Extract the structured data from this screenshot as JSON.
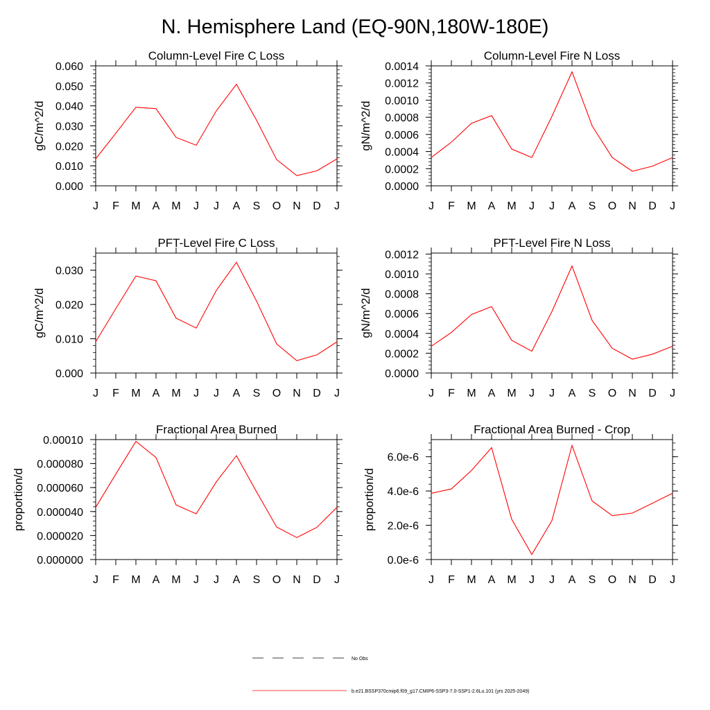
{
  "title": "N. Hemisphere Land (EQ-90N,180W-180E)",
  "chart_data": [
    {
      "type": "line",
      "title": "Column-Level Fire C Loss",
      "ylabel": "gC/m^2/d",
      "categories": [
        "J",
        "F",
        "M",
        "A",
        "M",
        "J",
        "J",
        "A",
        "S",
        "O",
        "N",
        "D",
        "J"
      ],
      "ylim": [
        0,
        0.06
      ],
      "yticks": [
        "0.000",
        "0.010",
        "0.020",
        "0.030",
        "0.040",
        "0.050",
        "0.060"
      ],
      "series": [
        {
          "color": "#ff0000",
          "values": [
            0.0135,
            0.0263,
            0.0393,
            0.0386,
            0.0242,
            0.0203,
            0.0375,
            0.0508,
            0.0328,
            0.0131,
            0.0051,
            0.0075,
            0.0135
          ]
        }
      ]
    },
    {
      "type": "line",
      "title": "Column-Level Fire N Loss",
      "ylabel": "gN/m^2/d",
      "categories": [
        "J",
        "F",
        "M",
        "A",
        "M",
        "J",
        "J",
        "A",
        "S",
        "O",
        "N",
        "D",
        "J"
      ],
      "ylim": [
        0,
        0.0014
      ],
      "yticks": [
        "0.0000",
        "0.0002",
        "0.0004",
        "0.0006",
        "0.0008",
        "0.0010",
        "0.0012",
        "0.0014"
      ],
      "series": [
        {
          "color": "#ff0000",
          "values": [
            0.00033,
            0.00051,
            0.00073,
            0.00082,
            0.00043,
            0.00033,
            0.00081,
            0.00133,
            0.0007,
            0.00033,
            0.00017,
            0.00023,
            0.00033
          ]
        }
      ]
    },
    {
      "type": "line",
      "title": "PFT-Level Fire C Loss",
      "ylabel": "gC/m^2/d",
      "categories": [
        "J",
        "F",
        "M",
        "A",
        "M",
        "J",
        "J",
        "A",
        "S",
        "O",
        "N",
        "D",
        "J"
      ],
      "ylim": [
        0,
        0.035
      ],
      "yticks": [
        "0.000",
        "0.010",
        "0.020",
        "0.030"
      ],
      "series": [
        {
          "color": "#ff0000",
          "values": [
            0.0091,
            0.0188,
            0.0283,
            0.0269,
            0.016,
            0.0131,
            0.0241,
            0.0323,
            0.021,
            0.0085,
            0.0036,
            0.0053,
            0.0091
          ]
        }
      ]
    },
    {
      "type": "line",
      "title": "PFT-Level Fire N Loss",
      "ylabel": "gN/m^2/d",
      "categories": [
        "J",
        "F",
        "M",
        "A",
        "M",
        "J",
        "J",
        "A",
        "S",
        "O",
        "N",
        "D",
        "J"
      ],
      "ylim": [
        0,
        0.00121
      ],
      "yticks": [
        "0.0000",
        "0.0002",
        "0.0004",
        "0.0006",
        "0.0008",
        "0.0010",
        "0.0012"
      ],
      "series": [
        {
          "color": "#ff0000",
          "values": [
            0.00027,
            0.00041,
            0.00059,
            0.00067,
            0.00033,
            0.00022,
            0.00062,
            0.00108,
            0.00053,
            0.00025,
            0.00014,
            0.00019,
            0.00027
          ]
        }
      ]
    },
    {
      "type": "line",
      "title": "Fractional Area Burned",
      "ylabel": "proportion/d",
      "categories": [
        "J",
        "F",
        "M",
        "A",
        "M",
        "J",
        "J",
        "A",
        "S",
        "O",
        "N",
        "D",
        "J"
      ],
      "ylim": [
        0,
        0.0001
      ],
      "yticks": [
        "0.000000",
        "0.000020",
        "0.000040",
        "0.000060",
        "0.000080",
        "0.00010"
      ],
      "series": [
        {
          "color": "#ff0000",
          "values": [
            4.35e-05,
            7.12e-05,
            9.85e-05,
            8.51e-05,
            4.55e-05,
            3.81e-05,
            6.48e-05,
            8.66e-05,
            5.65e-05,
            2.71e-05,
            1.83e-05,
            2.68e-05,
            4.35e-05
          ]
        }
      ]
    },
    {
      "type": "line",
      "title": "Fractional Area Burned - Crop",
      "ylabel": "proportion/d",
      "categories": [
        "J",
        "F",
        "M",
        "A",
        "M",
        "J",
        "J",
        "A",
        "S",
        "O",
        "N",
        "D",
        "J"
      ],
      "ylim": [
        0,
        7e-06
      ],
      "yticks": [
        "0.0e-6",
        "2.0e-6",
        "4.0e-6",
        "6.0e-6"
      ],
      "series": [
        {
          "color": "#ff0000",
          "values": [
            3.87e-06,
            4.12e-06,
            5.2e-06,
            6.53e-06,
            2.35e-06,
            3e-07,
            2.27e-06,
            6.66e-06,
            3.42e-06,
            2.56e-06,
            2.71e-06,
            3.29e-06,
            3.87e-06
          ]
        }
      ]
    }
  ],
  "legend": {
    "items": [
      {
        "label": "No Obs",
        "style": "dashed",
        "color": "#000000"
      },
      {
        "label": "b.e21.BSSP370cmip6.f09_g17.CMIP6-SSP3-7.0-SSP1-2.6Lu.101 (yrs 2025-2049)",
        "style": "solid",
        "color": "#ff0000"
      }
    ]
  }
}
